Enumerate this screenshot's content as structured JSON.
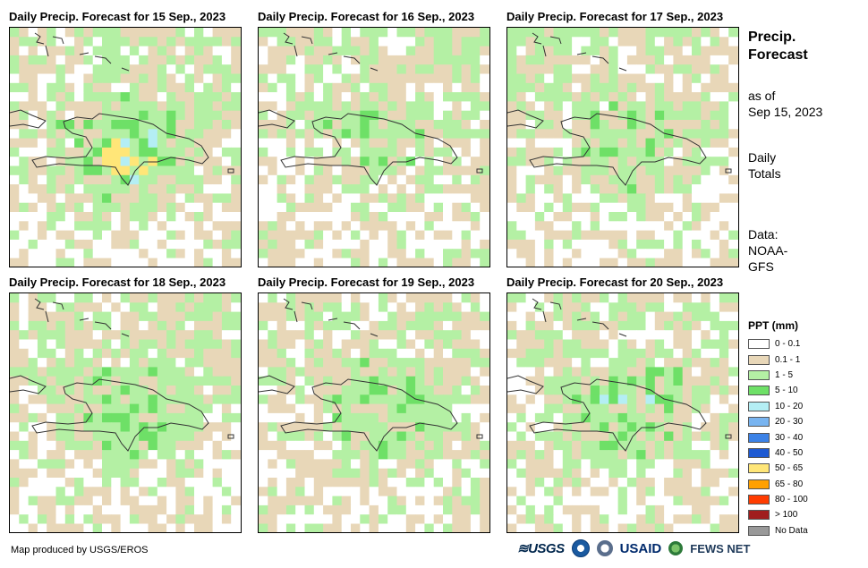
{
  "panels": [
    {
      "title": "Daily Precip. Forecast for 15 Sep., 2023",
      "seed": 11,
      "wet": 1.0
    },
    {
      "title": "Daily Precip. Forecast for 16 Sep., 2023",
      "seed": 23,
      "wet": 0.55
    },
    {
      "title": "Daily Precip. Forecast for 17 Sep., 2023",
      "seed": 37,
      "wet": 0.65
    },
    {
      "title": "Daily Precip. Forecast for 18 Sep., 2023",
      "seed": 41,
      "wet": 0.75
    },
    {
      "title": "Daily Precip. Forecast for 19 Sep., 2023",
      "seed": 53,
      "wet": 0.7
    },
    {
      "title": "Daily Precip. Forecast for 20 Sep., 2023",
      "seed": 67,
      "wet": 0.8
    }
  ],
  "side": {
    "title": "Precip. Forecast",
    "as_of": "as of",
    "date": "Sep 15, 2023",
    "totals_1": "Daily",
    "totals_2": "Totals",
    "data_1": "Data:",
    "data_2": "NOAA-",
    "data_3": "GFS"
  },
  "legend": {
    "title": "PPT (mm)",
    "items": [
      {
        "label": "0 - 0.1",
        "color": "#ffffff"
      },
      {
        "label": "0.1 - 1",
        "color": "#e8d7b8"
      },
      {
        "label": "1 - 5",
        "color": "#b4f0a4"
      },
      {
        "label": "5 - 10",
        "color": "#6ee067"
      },
      {
        "label": "10 - 20",
        "color": "#b4eef4"
      },
      {
        "label": "20 - 30",
        "color": "#78b4f0"
      },
      {
        "label": "30 - 40",
        "color": "#3c82e6"
      },
      {
        "label": "40 - 50",
        "color": "#1e5ad2"
      },
      {
        "label": "50 - 65",
        "color": "#ffe678"
      },
      {
        "label": "65 - 80",
        "color": "#ffa000"
      },
      {
        "label": "80 - 100",
        "color": "#ff3c00"
      },
      {
        "label": "> 100",
        "color": "#a01e1e"
      },
      {
        "label": "No Data",
        "color": "#999999"
      }
    ]
  },
  "footer": {
    "credit": "Map produced by USGS/EROS",
    "logo_usgs": "≋USGS",
    "logo_usaid": "USAID",
    "logo_fews": "FEWS NET"
  }
}
